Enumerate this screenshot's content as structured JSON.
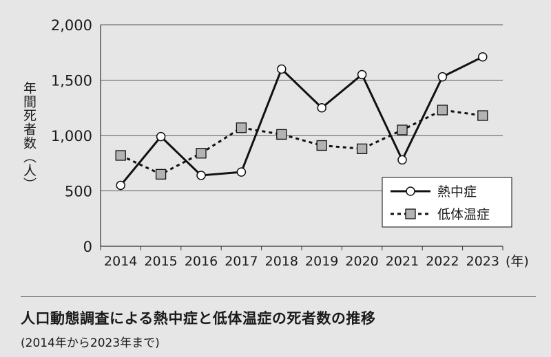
{
  "chart_data": {
    "type": "line",
    "categories": [
      "2014",
      "2015",
      "2016",
      "2017",
      "2018",
      "2019",
      "2020",
      "2021",
      "2022",
      "2023"
    ],
    "x_unit": "(年)",
    "ylabel": "年間死者数（人）",
    "ylim": [
      0,
      2000
    ],
    "yticks": [
      0,
      500,
      1000,
      1500,
      2000
    ],
    "ytick_labels": [
      "0",
      "500",
      "1,000",
      "1,500",
      "2,000"
    ],
    "grid": "horizontal",
    "legend_position": "lower-right",
    "series": [
      {
        "name": "熱中症",
        "style": "solid-circle",
        "color": "#111111",
        "values": [
          550,
          990,
          640,
          670,
          1600,
          1250,
          1550,
          780,
          1530,
          1710
        ]
      },
      {
        "name": "低体温症",
        "style": "dashed-square",
        "color": "#111111",
        "values": [
          820,
          650,
          840,
          1070,
          1010,
          910,
          880,
          1050,
          1230,
          1180
        ]
      }
    ]
  },
  "caption": {
    "title": "人口動態調査による熱中症と低体温症の死者数の推移",
    "subtitle": "(2014年から2023年まで)"
  }
}
